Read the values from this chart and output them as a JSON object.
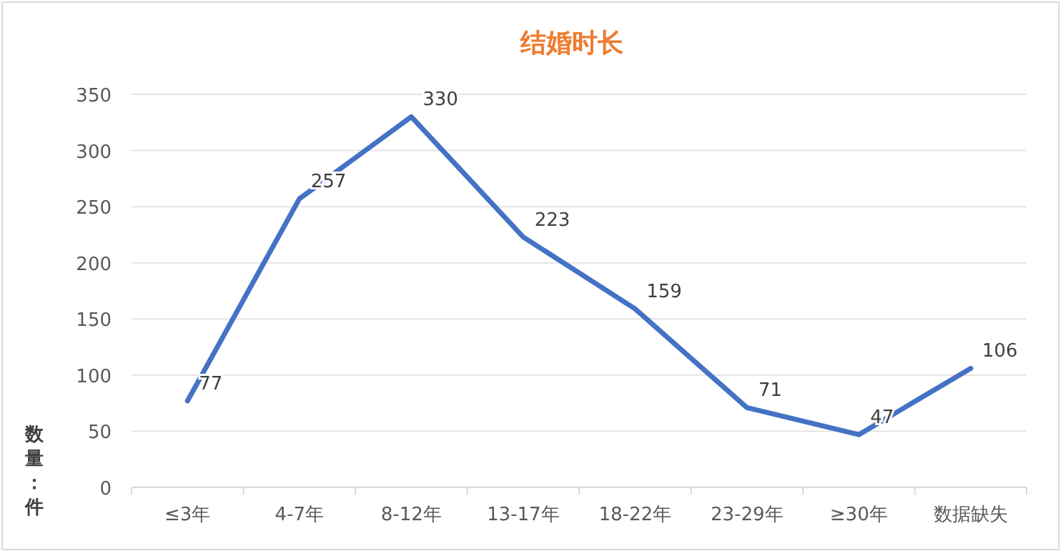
{
  "chart_data": {
    "type": "line",
    "title": "结婚时长",
    "ylabel": "数量：件",
    "categories": [
      "≤3年",
      "4-7年",
      "8-12年",
      "13-17年",
      "18-22年",
      "23-29年",
      "≥30年",
      "数据缺失"
    ],
    "series": [
      {
        "color": "#4472c4",
        "values": [
          77,
          257,
          330,
          223,
          159,
          71,
          47,
          106
        ]
      }
    ],
    "ylim": [
      0,
      350
    ],
    "yticks": [
      0,
      50,
      100,
      150,
      200,
      250,
      300,
      350
    ],
    "grid": "y",
    "data_labels": true
  }
}
